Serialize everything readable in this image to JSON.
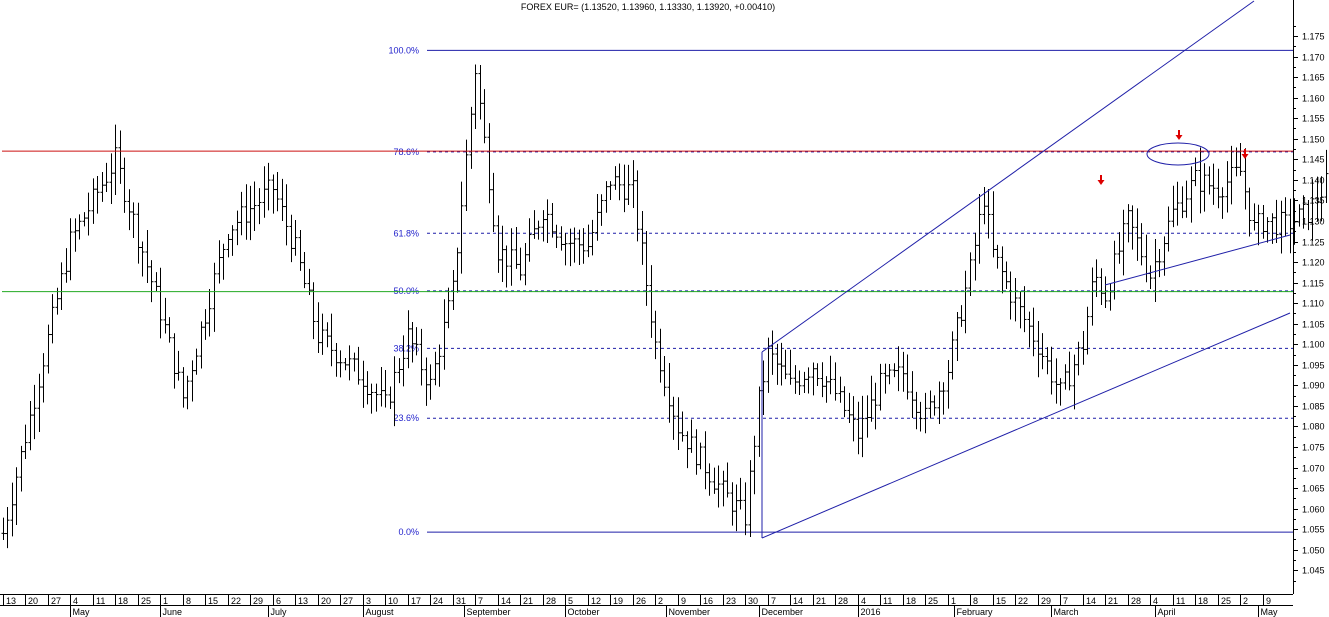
{
  "chart_data": {
    "type": "ohlc",
    "title": "FOREX EUR= (1.13520, 1.13960, 1.13330, 1.13920, +0.00410)",
    "ylim": [
      1.04,
      1.18
    ],
    "y_ticks": [
      "1.045",
      "1.050",
      "1.055",
      "1.060",
      "1.065",
      "1.070",
      "1.075",
      "1.080",
      "1.085",
      "1.090",
      "1.095",
      "1.100",
      "1.105",
      "1.110",
      "1.115",
      "1.120",
      "1.125",
      "1.130",
      "1.135",
      "1.140",
      "1.145",
      "1.150",
      "1.155",
      "1.160",
      "1.165",
      "1.170",
      "1.175"
    ],
    "x_day_labels": [
      "13",
      "20",
      "27",
      "4",
      "11",
      "18",
      "25",
      "1",
      "8",
      "15",
      "22",
      "29",
      "6",
      "13",
      "20",
      "27",
      "3",
      "10",
      "17",
      "24",
      "31",
      "7",
      "14",
      "21",
      "28",
      "5",
      "12",
      "19",
      "26",
      "2",
      "9",
      "16",
      "23",
      "30",
      "7",
      "14",
      "21",
      "28",
      "4",
      "11",
      "18",
      "25",
      "1",
      "8",
      "15",
      "22",
      "29",
      "7",
      "14",
      "21",
      "28",
      "4",
      "11",
      "18",
      "25",
      "2",
      "9"
    ],
    "x_month_labels": [
      "May",
      "June",
      "July",
      "August",
      "September",
      "October",
      "November",
      "December",
      "2016",
      "February",
      "March",
      "April",
      "May"
    ],
    "fib_levels": [
      {
        "label": "100.0%",
        "value": 1.1715
      },
      {
        "label": "78.6%",
        "value": 1.1468
      },
      {
        "label": "61.8%",
        "value": 1.127
      },
      {
        "label": "50.0%",
        "value": 1.113
      },
      {
        "label": "38.2%",
        "value": 1.099
      },
      {
        "label": "23.6%",
        "value": 1.082
      },
      {
        "label": "0.0%",
        "value": 1.0543
      }
    ],
    "resistance": 1.147,
    "support": 1.1128,
    "colors": {
      "bars": "#000000",
      "fib": "#1f1fa8",
      "resistance": "#cc1111",
      "support": "#22aa22",
      "trend": "#1f1fa8",
      "arrow": "#dd0000"
    },
    "anchors": [
      {
        "week": 0,
        "price": 1.054
      },
      {
        "week": 3,
        "price": 1.125
      },
      {
        "week": 5,
        "price": 1.145
      },
      {
        "week": 7,
        "price": 1.108
      },
      {
        "week": 8,
        "price": 1.087
      },
      {
        "week": 10,
        "price": 1.128
      },
      {
        "week": 12,
        "price": 1.138
      },
      {
        "week": 13,
        "price": 1.123
      },
      {
        "week": 14,
        "price": 1.102
      },
      {
        "week": 16,
        "price": 1.092
      },
      {
        "week": 17,
        "price": 1.085
      },
      {
        "week": 18,
        "price": 1.102
      },
      {
        "week": 19,
        "price": 1.09
      },
      {
        "week": 20,
        "price": 1.113
      },
      {
        "week": 21,
        "price": 1.167
      },
      {
        "week": 22,
        "price": 1.123
      },
      {
        "week": 23,
        "price": 1.118
      },
      {
        "week": 24,
        "price": 1.133
      },
      {
        "week": 25,
        "price": 1.125
      },
      {
        "week": 26,
        "price": 1.124
      },
      {
        "week": 27,
        "price": 1.14
      },
      {
        "week": 28,
        "price": 1.137
      },
      {
        "week": 29,
        "price": 1.1
      },
      {
        "week": 30,
        "price": 1.08
      },
      {
        "week": 31,
        "price": 1.072
      },
      {
        "week": 32,
        "price": 1.064
      },
      {
        "week": 33,
        "price": 1.058
      },
      {
        "week": 33.6,
        "price": 1.086
      },
      {
        "week": 34,
        "price": 1.098
      },
      {
        "week": 35,
        "price": 1.09
      },
      {
        "week": 36,
        "price": 1.095
      },
      {
        "week": 37,
        "price": 1.088
      },
      {
        "week": 38,
        "price": 1.078
      },
      {
        "week": 39,
        "price": 1.09
      },
      {
        "week": 40,
        "price": 1.093
      },
      {
        "week": 41,
        "price": 1.082
      },
      {
        "week": 42,
        "price": 1.094
      },
      {
        "week": 43,
        "price": 1.118
      },
      {
        "week": 43.6,
        "price": 1.136
      },
      {
        "week": 44,
        "price": 1.122
      },
      {
        "week": 45,
        "price": 1.11
      },
      {
        "week": 46,
        "price": 1.1
      },
      {
        "week": 47,
        "price": 1.088
      },
      {
        "week": 48,
        "price": 1.1
      },
      {
        "week": 48.5,
        "price": 1.117
      },
      {
        "week": 49,
        "price": 1.112
      },
      {
        "week": 50,
        "price": 1.13
      },
      {
        "week": 51,
        "price": 1.117
      },
      {
        "week": 52,
        "price": 1.132
      },
      {
        "week": 53,
        "price": 1.14
      },
      {
        "week": 54,
        "price": 1.138
      },
      {
        "week": 55,
        "price": 1.142
      },
      {
        "week": 55.6,
        "price": 1.128
      },
      {
        "week": 56,
        "price": 1.13
      },
      {
        "week": 57,
        "price": 1.129
      },
      {
        "week": 58,
        "price": 1.132
      },
      {
        "week": 58.8,
        "price": 1.139
      }
    ]
  }
}
